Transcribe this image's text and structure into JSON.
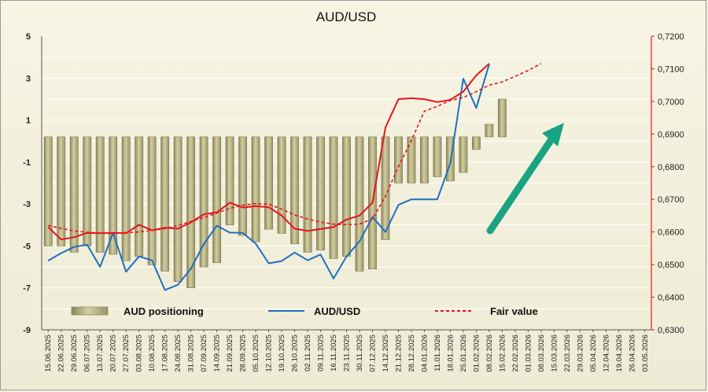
{
  "chart_data": {
    "type": "bar+line",
    "title": "AUD/USD",
    "x": [
      "15.06.2025",
      "22.06.2025",
      "29.06.2025",
      "06.07.2025",
      "13.07.2025",
      "20.07.2025",
      "27.07.2025",
      "03.08.2025",
      "10.08.2025",
      "17.08.2025",
      "24.08.2025",
      "31.08.2025",
      "07.09.2025",
      "14.09.2025",
      "21.09.2025",
      "28.09.2025",
      "05.10.2025",
      "12.10.2025",
      "19.10.2025",
      "26.10.2025",
      "02.11.2025",
      "09.11.2025",
      "16.11.2025",
      "23.11.2025",
      "30.11.2025",
      "07.12.2025",
      "14.12.2025",
      "21.12.2025",
      "28.12.2025",
      "04.01.2026",
      "11.01.2026",
      "18.01.2026",
      "25.01.2026",
      "01.02.2026",
      "08.02.2026",
      "15.02.2026",
      "22.02.2026",
      "01.03.2026",
      "08.03.2026",
      "15.03.2026",
      "22.03.2026",
      "29.03.2026",
      "05.04.2026",
      "12.04.2026",
      "19.04.2026",
      "26.04.2026",
      "03.05.2026"
    ],
    "left_axis": {
      "min": -9,
      "max": 5,
      "ticks": [
        5,
        3,
        1,
        -1,
        -3,
        -5,
        -7,
        -9
      ]
    },
    "right_axis": {
      "min": 0.63,
      "max": 0.72,
      "ticks": [
        "0,7200",
        "0,7100",
        "0,7000",
        "0,6900",
        "0,6800",
        "0,6700",
        "0,6600",
        "0,6500",
        "0,6400",
        "0,6300"
      ]
    },
    "series": [
      {
        "name": "AUD positioning",
        "axis": "left",
        "kind": "bar",
        "color": "#b2ac7c",
        "values": [
          -5.0,
          -5.0,
          -5.3,
          -5.0,
          -5.3,
          -5.4,
          -5.7,
          -5.5,
          -5.9,
          -6.2,
          -6.7,
          -7.0,
          -6.0,
          -5.8,
          -4.0,
          -4.5,
          -4.8,
          -4.2,
          -4.4,
          -4.9,
          -5.3,
          -5.2,
          -5.6,
          -5.5,
          -6.2,
          -6.1,
          -4.7,
          -2.0,
          -2.0,
          -2.0,
          -1.7,
          -1.9,
          -1.5,
          -0.4,
          0.8,
          2.0,
          null,
          null,
          null,
          null,
          null,
          null,
          null,
          null,
          null,
          null,
          null
        ]
      },
      {
        "name": "AUD/USD",
        "axis": "right",
        "kind": "line",
        "color": "#1f6fc0",
        "values": [
          0.6512,
          0.6535,
          0.6554,
          0.6561,
          0.6493,
          0.6597,
          0.6478,
          0.6525,
          0.6513,
          0.6422,
          0.6438,
          0.6487,
          0.6563,
          0.6619,
          0.6598,
          0.6597,
          0.6564,
          0.6504,
          0.6511,
          0.6537,
          0.6513,
          0.6531,
          0.6457,
          0.6525,
          0.6571,
          0.6646,
          0.66,
          0.6683,
          0.67,
          0.67,
          0.67,
          0.681,
          0.707,
          0.698,
          0.7115,
          null,
          null,
          null,
          null,
          null,
          null,
          null,
          null,
          null,
          null,
          null,
          null
        ]
      },
      {
        "name": "Fair value",
        "axis": "right",
        "kind": "line",
        "color": "#e8141a",
        "values": [
          0.6615,
          0.6577,
          0.6584,
          0.6597,
          0.6596,
          0.6597,
          0.6596,
          0.6622,
          0.6605,
          0.6613,
          0.661,
          0.6629,
          0.6654,
          0.666,
          0.669,
          0.6675,
          0.6679,
          0.6676,
          0.665,
          0.661,
          0.6603,
          0.6609,
          0.6615,
          0.6638,
          0.665,
          0.669,
          0.692,
          0.7007,
          0.701,
          0.7007,
          0.6998,
          0.7005,
          0.703,
          0.708,
          0.7116,
          null,
          null,
          null,
          null,
          null,
          null,
          null,
          null,
          null,
          null,
          null,
          null
        ]
      },
      {
        "name": "Fair value",
        "axis": "right",
        "kind": "dashed",
        "color": "#e8141a",
        "values": [
          0.662,
          0.6611,
          0.6603,
          0.6599,
          0.6597,
          0.6595,
          0.6598,
          0.66,
          0.6605,
          0.661,
          0.662,
          0.6632,
          0.6644,
          0.6658,
          0.6672,
          0.6682,
          0.6687,
          0.6685,
          0.667,
          0.6652,
          0.664,
          0.663,
          0.6624,
          0.6622,
          0.6624,
          0.664,
          0.671,
          0.68,
          0.688,
          0.697,
          0.6985,
          0.7003,
          0.7012,
          0.703,
          0.705,
          0.706,
          0.7077,
          0.7095,
          0.7116,
          null,
          null,
          null,
          null,
          null,
          null,
          null,
          null
        ]
      }
    ]
  },
  "legend": [
    {
      "label": "AUD positioning",
      "swatch": "bar",
      "color": "#b2ac7c"
    },
    {
      "label": "AUD/USD",
      "swatch": "line",
      "color": "#1f6fc0"
    },
    {
      "label": "Fair value",
      "swatch": "dashed",
      "color": "#e8141a"
    }
  ],
  "colors": {
    "arrow": "#1aa382",
    "right_axis": "#e8141a",
    "grid": "#ffffff"
  }
}
